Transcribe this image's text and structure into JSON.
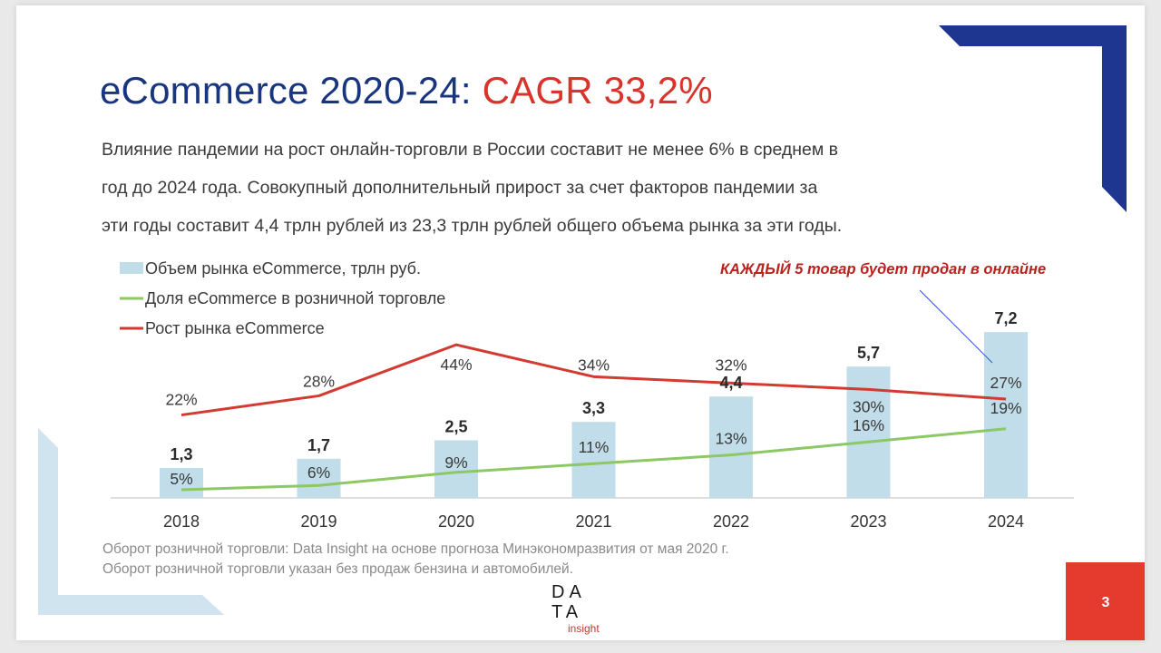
{
  "slide": {
    "title_part1": "eCommerce 2020-24: ",
    "title_part2": "CAGR 33,2%",
    "intro_lines": [
      "Влияние пандемии на рост онлайн-торговли в России составит не менее 6% в среднем в",
      "год до 2024 года. Совокупный дополнительный прирост за счет факторов пандемии за",
      "эти годы составит 4,4 трлн рублей из 23,3 трлн рублей общего объема рынка за эти годы."
    ],
    "callout": "КАЖДЫЙ 5 товар будет продан в онлайне",
    "source_lines": [
      "Оборот розничной торговли: Data Insight на основе прогноза Минэкономразвития от мая 2020 г.",
      "Оборот розничной торговли указан без продаж бензина и автомобилей."
    ],
    "logo": {
      "line1": "DA",
      "line2": "TA",
      "line3": "insight"
    },
    "page_number": "3",
    "colors": {
      "title_blue": "#1a3580",
      "title_red": "#d9332c",
      "bar": "#c0dde9",
      "green_line": "#8cc864",
      "red_line": "#d23a32",
      "navy_corner": "#1f3690",
      "light_blue_corner": "#cfe4ee",
      "page_badge": "#e53a2e"
    }
  },
  "chart_data": {
    "type": "bar",
    "categories": [
      "2018",
      "2019",
      "2020",
      "2021",
      "2022",
      "2023",
      "2024"
    ],
    "series": [
      {
        "name": "Объем рынка eCommerce, трлн руб.",
        "type": "bar",
        "values": [
          1.3,
          1.7,
          2.5,
          3.3,
          4.4,
          5.7,
          7.2
        ],
        "labels": [
          "1,3",
          "1,7",
          "2,5",
          "3,3",
          "4,4",
          "5,7",
          "7,2"
        ]
      },
      {
        "name": "Доля eCommerce в розничной торговле",
        "type": "line",
        "values": [
          5,
          6,
          9,
          11,
          13,
          16,
          19
        ],
        "labels": [
          "5%",
          "6%",
          "9%",
          "11%",
          "13%",
          "16%",
          "19%"
        ]
      },
      {
        "name": "Рост рынка eCommerce",
        "type": "line",
        "values": [
          22,
          28,
          44,
          34,
          32,
          30,
          27
        ],
        "labels": [
          "22%",
          "28%",
          "44%",
          "34%",
          "32%",
          "30%",
          "27%"
        ]
      }
    ],
    "legend_position": "top-left",
    "grid": false
  }
}
